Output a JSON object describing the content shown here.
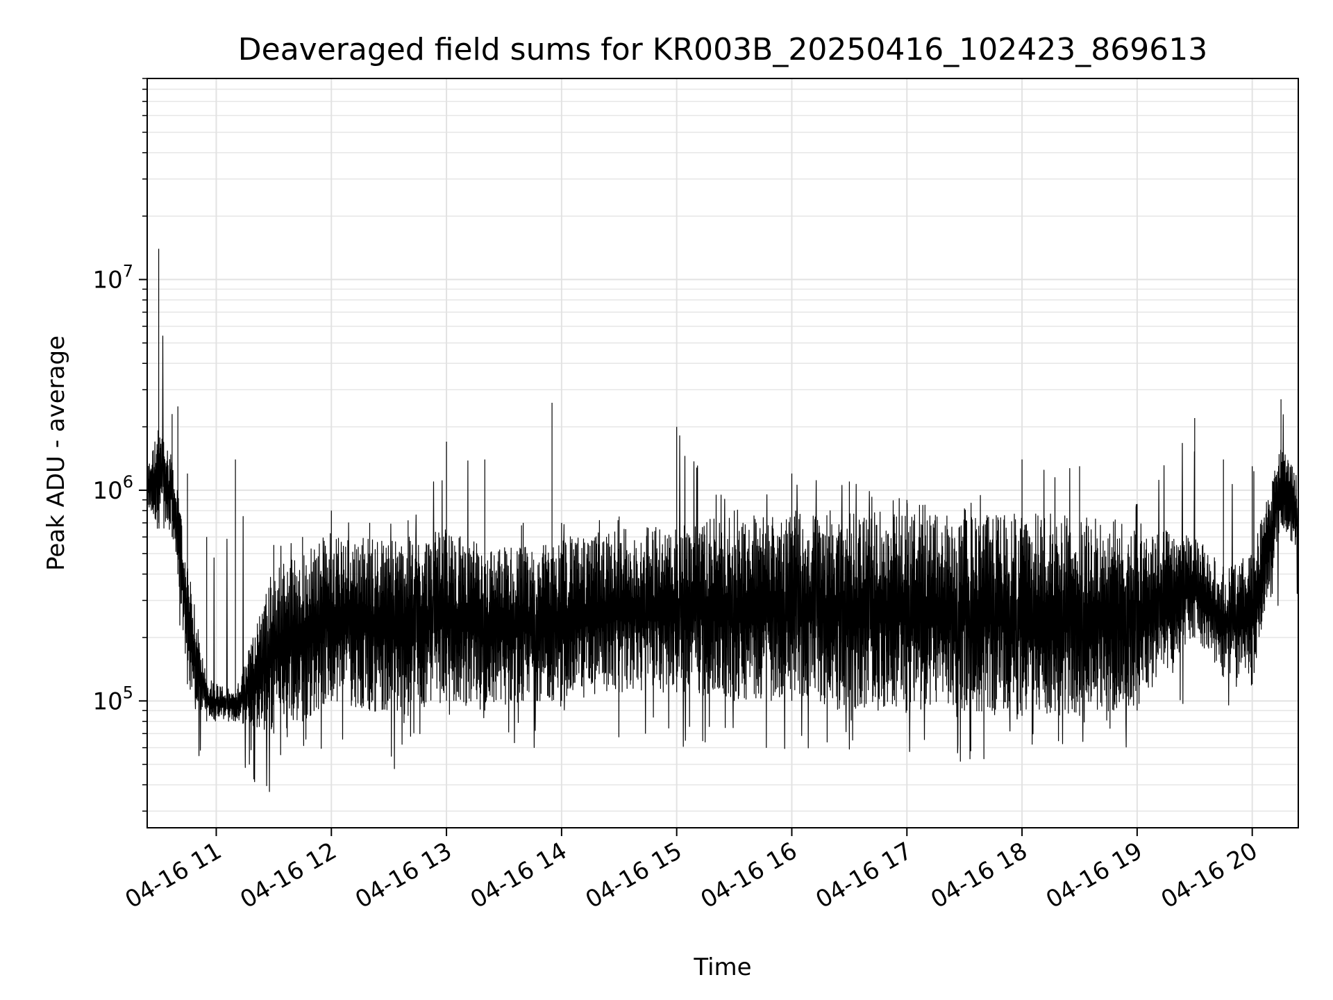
{
  "chart_data": {
    "type": "line",
    "title": "Deaveraged field sums for KR003B_20250416_102423_869613",
    "xlabel": "Time",
    "ylabel": "Peak ADU - average",
    "x_axis": {
      "kind": "time",
      "range": [
        "2025-04-16 10:24",
        "2025-04-16 20:24"
      ],
      "tick_values": [
        "2025-04-16 11:00",
        "2025-04-16 12:00",
        "2025-04-16 13:00",
        "2025-04-16 14:00",
        "2025-04-16 15:00",
        "2025-04-16 16:00",
        "2025-04-16 17:00",
        "2025-04-16 18:00",
        "2025-04-16 19:00",
        "2025-04-16 20:00"
      ],
      "tick_labels": [
        "04-16 11",
        "04-16 12",
        "04-16 13",
        "04-16 14",
        "04-16 15",
        "04-16 16",
        "04-16 17",
        "04-16 18",
        "04-16 19",
        "04-16 20"
      ],
      "tick_label_rotation_deg": 30
    },
    "y_axis": {
      "scale": "log",
      "range": [
        25000,
        90000000
      ],
      "ticks": [
        {
          "value": 100000,
          "base": "10",
          "exp": "5"
        },
        {
          "value": 1000000,
          "base": "10",
          "exp": "6"
        },
        {
          "value": 10000000,
          "base": "10",
          "exp": "7"
        }
      ]
    },
    "grid": true,
    "grid_minor": true,
    "legend": false,
    "line_color": "#000000",
    "series": [
      {
        "x": [
          "2025-04-16 10:24",
          "2025-04-16 10:30",
          "2025-04-16 10:37",
          "2025-04-16 10:40",
          "2025-04-16 10:45",
          "2025-04-16 10:55",
          "2025-04-16 11:10",
          "2025-04-16 11:30",
          "2025-04-16 11:45",
          "2025-04-16 12:00",
          "2025-04-16 12:20",
          "2025-04-16 12:40",
          "2025-04-16 13:00",
          "2025-04-16 13:20",
          "2025-04-16 13:40",
          "2025-04-16 13:55",
          "2025-04-16 14:00",
          "2025-04-16 14:30",
          "2025-04-16 15:00",
          "2025-04-16 15:30",
          "2025-04-16 16:00",
          "2025-04-16 16:30",
          "2025-04-16 17:00",
          "2025-04-16 17:30",
          "2025-04-16 18:00",
          "2025-04-16 18:30",
          "2025-04-16 19:00",
          "2025-04-16 19:30",
          "2025-04-16 19:45",
          "2025-04-16 20:00",
          "2025-04-16 20:15",
          "2025-04-16 20:24"
        ],
        "peak": [
          1500000,
          14000000,
          2300000,
          2500000,
          1200000,
          600000,
          1400000,
          550000,
          600000,
          800000,
          700000,
          720000,
          1700000,
          1400000,
          700000,
          2600000,
          700000,
          750000,
          2000000,
          800000,
          1200000,
          1100000,
          900000,
          820000,
          1400000,
          1300000,
          860000,
          2200000,
          1400000,
          1300000,
          2700000,
          2500000
        ],
        "high": [
          1300000,
          2000000,
          1500000,
          1000000,
          450000,
          130000,
          110000,
          450000,
          500000,
          650000,
          600000,
          600000,
          650000,
          550000,
          550000,
          550000,
          600000,
          650000,
          700000,
          750000,
          800000,
          800000,
          780000,
          760000,
          780000,
          780000,
          700000,
          600000,
          450000,
          500000,
          1600000,
          1200000
        ],
        "low": [
          800000,
          700000,
          600000,
          400000,
          120000,
          80000,
          80000,
          70000,
          80000,
          100000,
          90000,
          85000,
          100000,
          90000,
          100000,
          100000,
          100000,
          110000,
          110000,
          100000,
          100000,
          90000,
          90000,
          90000,
          85000,
          85000,
          90000,
          200000,
          130000,
          120000,
          700000,
          500000
        ],
        "trough": [
          600000,
          600000,
          500000,
          150000,
          60000,
          45000,
          45000,
          35000,
          45000,
          60000,
          45000,
          45000,
          50000,
          50000,
          55000,
          60000,
          50000,
          55000,
          60000,
          55000,
          60000,
          55000,
          55000,
          45000,
          60000,
          60000,
          60000,
          70000,
          70000,
          60000,
          300000,
          270000
        ]
      }
    ]
  }
}
